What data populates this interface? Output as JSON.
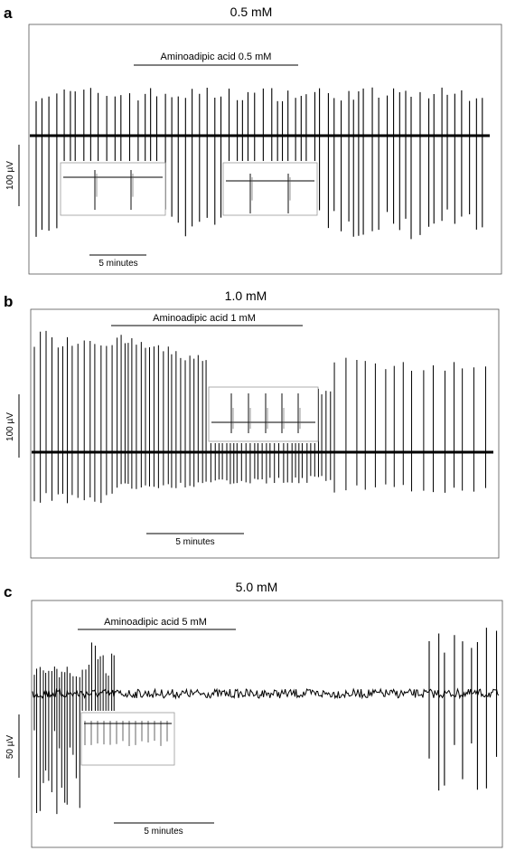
{
  "panels": [
    {
      "letter": "a",
      "title": "0.5 mM",
      "drug_label": "Aminoadipic acid 0.5 mM",
      "time_scale_label": "5 minutes",
      "amplitude_scale_label": "100 µV",
      "insets": 2
    },
    {
      "letter": "b",
      "title": "1.0 mM",
      "drug_label": "Aminoadipic acid 1 mM",
      "time_scale_label": "5 minutes",
      "amplitude_scale_label": "100 µV",
      "insets": 1
    },
    {
      "letter": "c",
      "title": "5.0 mM",
      "drug_label": "Aminoadipic acid 5 mM",
      "time_scale_label": "5 minutes",
      "amplitude_scale_label": "50 µV",
      "insets": 1
    }
  ],
  "chart_data": [
    {
      "type": "line",
      "title": "0.5 mM",
      "annotations": [
        "Aminoadipic acid 0.5 mM",
        "5 minutes",
        "100 µV"
      ],
      "series": [
        {
          "values": []
        }
      ]
    },
    {
      "type": "line",
      "title": "1.0 mM",
      "annotations": [
        "Aminoadipic acid 1 mM",
        "5 minutes",
        "100 µV"
      ],
      "series": [
        {
          "values": []
        }
      ]
    },
    {
      "type": "line",
      "title": "5.0 mM",
      "annotations": [
        "Aminoadipic acid 5 mM",
        "5 minutes",
        "50 µV"
      ],
      "series": [
        {
          "values": []
        }
      ]
    }
  ]
}
